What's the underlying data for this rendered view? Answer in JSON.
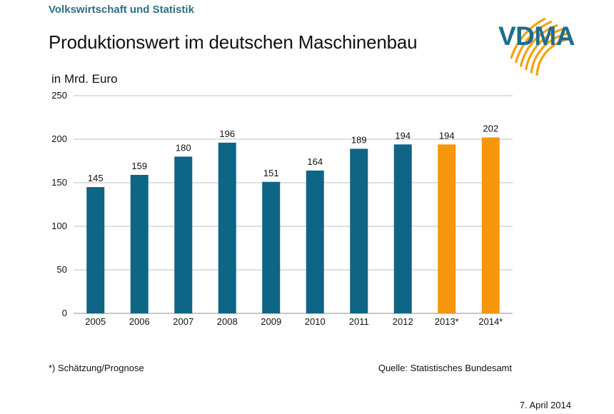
{
  "header": {
    "section_title": "Volkswirtschaft und Statistik",
    "title": "Produktionswert im deutschen Maschinenbau",
    "logo_text": "VDMA"
  },
  "colors": {
    "actual": "#0e6585",
    "forecast": "#f5960c",
    "logo_arcs": "#f2a20f",
    "logo_text": "#1c6d8f",
    "grid": "#bfbfbf"
  },
  "chart_data": {
    "type": "bar",
    "title": "Produktionswert im deutschen Maschinenbau",
    "ylabel": "in Mrd. Euro",
    "xlabel": "",
    "ylim": [
      0,
      250
    ],
    "yticks": [
      0,
      50,
      100,
      150,
      200,
      250
    ],
    "grid": true,
    "categories": [
      "2005",
      "2006",
      "2007",
      "2008",
      "2009",
      "2010",
      "2011",
      "2012",
      "2013*",
      "2014*"
    ],
    "values": [
      145,
      159,
      180,
      196,
      151,
      164,
      189,
      194,
      194,
      202
    ],
    "forecast": [
      false,
      false,
      false,
      false,
      false,
      false,
      false,
      false,
      true,
      true
    ],
    "data_labels": true
  },
  "footer": {
    "footnote": "*) Schätzung/Prognose",
    "source": "Quelle: Statistisches Bundesamt",
    "date": "7. April 2014"
  }
}
